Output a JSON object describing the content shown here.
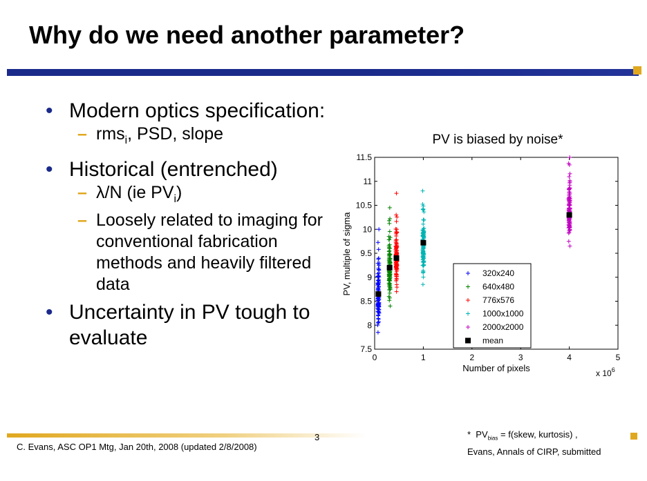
{
  "slide": {
    "title": "Why do we need another parameter?",
    "bullets": [
      {
        "text": "Modern optics specification:",
        "subs": [
          {
            "text": "rms",
            "sub": "i",
            "after": ", PSD, slope"
          }
        ]
      },
      {
        "text": "Historical (entrenched)",
        "subs": [
          {
            "text": "λ/N (ie PV",
            "sub": "i",
            "after": ")"
          },
          {
            "text": "Loosely related to imaging for conventional fabrication methods and heavily filtered data",
            "sub": "",
            "after": ""
          }
        ]
      },
      {
        "text": "Uncertainty in PV tough to evaluate",
        "subs": []
      }
    ],
    "footer": "C. Evans, ASC OP1 Mtg, Jan 20th, 2008 (updated 2/8/2008)",
    "page_number": "3",
    "footnote": {
      "star": "*",
      "pv": "PV",
      "pv_sub": "bias",
      "formula": "= f(skew, kurtosis) ,",
      "line2": "Evans, Annals of CIRP, submitted"
    },
    "colors": {
      "navy": "#1a2a8a",
      "gold": "#e0a820"
    }
  },
  "chart_data": {
    "type": "scatter",
    "title": "PV is biased by noise*",
    "xlabel": "Number of pixels",
    "ylabel": "PV, multiple of sigma",
    "x_multiplier": "x 10",
    "x_multiplier_exp": "6",
    "xlim": [
      0,
      5
    ],
    "ylim": [
      7.5,
      11.5
    ],
    "xticks": [
      "0",
      "1",
      "2",
      "3",
      "4",
      "5"
    ],
    "yticks": [
      "7.5",
      "8",
      "8.5",
      "9",
      "9.5",
      "10",
      "10.5",
      "11",
      "11.5"
    ],
    "legend_position": "bottom-right",
    "series": [
      {
        "name": "320x240",
        "x": 0.0768,
        "color": "#0000ff",
        "marker": "+",
        "y_min": 7.85,
        "y_max": 10.0,
        "mean": 8.65,
        "outliers": []
      },
      {
        "name": "640x480",
        "x": 0.3072,
        "color": "#008000",
        "marker": "+",
        "y_min": 8.4,
        "y_max": 10.45,
        "mean": 9.2,
        "outliers": []
      },
      {
        "name": "776x576",
        "x": 0.447,
        "color": "#ff0000",
        "marker": "+",
        "y_min": 8.7,
        "y_max": 10.3,
        "mean": 9.4,
        "outliers": [
          10.75
        ]
      },
      {
        "name": "1000x1000",
        "x": 1.0,
        "color": "#00b3b3",
        "marker": "+",
        "y_min": 8.85,
        "y_max": 10.8,
        "mean": 9.72,
        "outliers": []
      },
      {
        "name": "2000x2000",
        "x": 4.0,
        "color": "#c000c0",
        "marker": "+",
        "y_min": 9.65,
        "y_max": 11.5,
        "mean": 10.3,
        "outliers": []
      }
    ],
    "mean_label": "mean"
  }
}
